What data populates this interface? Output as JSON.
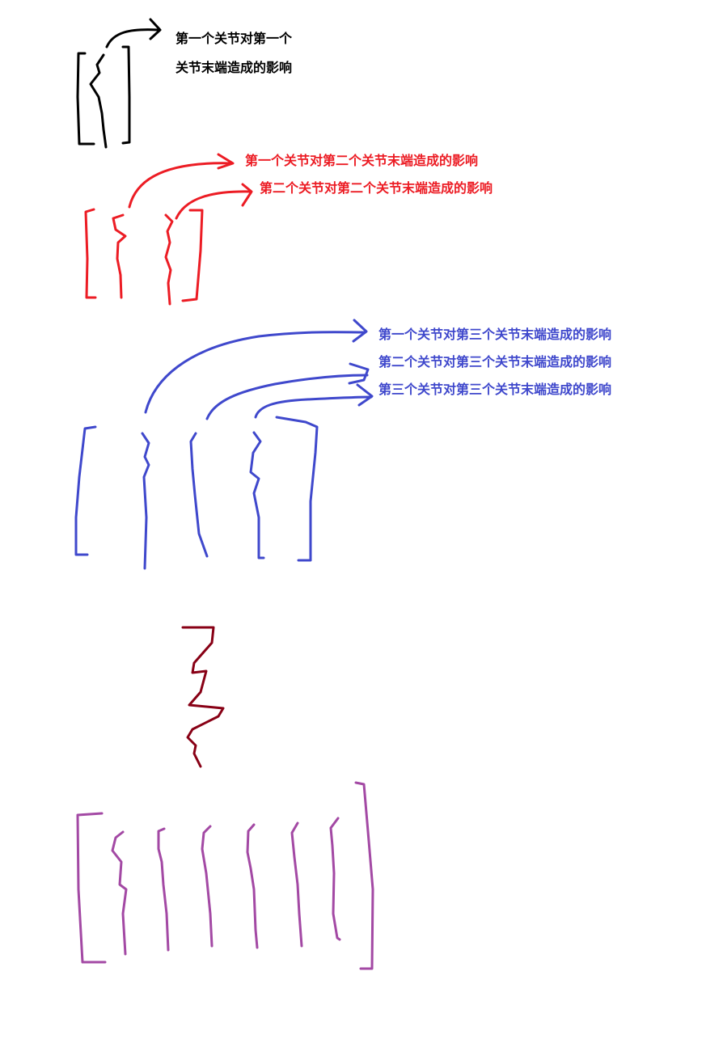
{
  "colors": {
    "black": "#000000",
    "red": "#ec1c24",
    "blue": "#3f48cc",
    "darkred": "#880015",
    "purple": "#a349a4"
  },
  "section1": {
    "label_line1": "第一个关节对第一个",
    "label_line2": "关节末端造成的影响"
  },
  "section2": {
    "label1": "第一个关节对第二个关节末端造成的影响",
    "label2": "第二个关节对第二个关节末端造成的影响"
  },
  "section3": {
    "label1": "第一个关节对第三个关节末端造成的影响",
    "label2": "第二个关节对第三个关节末端造成的影响",
    "label3": "第三个关节对第三个关节末端造成的影响"
  }
}
